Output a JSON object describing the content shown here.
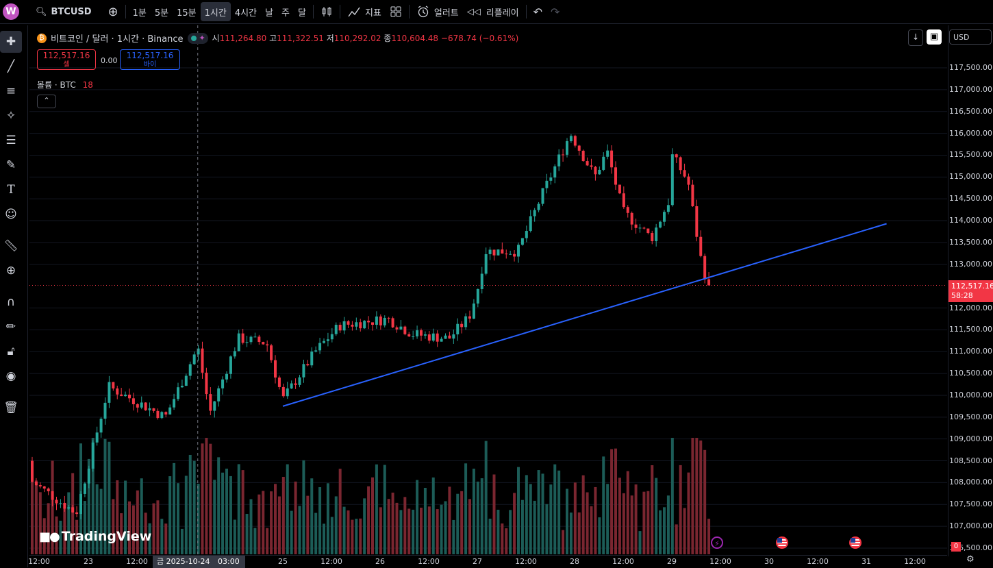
{
  "toolbar": {
    "logo": "W",
    "symbol": "BTCUSD",
    "intervals": [
      "1분",
      "5분",
      "15분",
      "1시간",
      "4시간",
      "날",
      "주",
      "달"
    ],
    "active_interval": "1시간",
    "indicators_label": "지표",
    "alert_label": "얼러트",
    "replay_label": "리플레이"
  },
  "legend": {
    "title": "비트코인 / 달러 · 1시간 · Binance",
    "open_label": "시",
    "open": "111,264.80",
    "high_label": "고",
    "high": "111,322.51",
    "low_label": "저",
    "low": "110,292.02",
    "close_label": "종",
    "close": "110,604.48",
    "change": "−678.74 (−0.61%)"
  },
  "trade": {
    "sell_price": "112,517.16",
    "sell_label": "셀",
    "spread": "0.00",
    "buy_price": "112,517.16",
    "buy_label": "바이"
  },
  "volume_legend": {
    "label": "볼륨 · BTC",
    "value": "18"
  },
  "currency": "USD",
  "last_price": {
    "price": "112,517.16",
    "countdown": "58:28"
  },
  "volume_axis_label": "0",
  "watermark": "TradingView",
  "crosshair_time": {
    "date": "금 2025-10-24",
    "time": "03:00"
  },
  "price_axis": [
    "117,500.00",
    "117,000.00",
    "116,500.00",
    "116,000.00",
    "115,500.00",
    "115,000.00",
    "114,500.00",
    "114,000.00",
    "113,500.00",
    "113,000.00",
    "112,000.00",
    "111,500.00",
    "111,000.00",
    "110,500.00",
    "110,000.00",
    "109,500.00",
    "109,000.00",
    "108,500.00",
    "108,000.00",
    "107,500.00",
    "107,000.00",
    "106,500.00"
  ],
  "time_axis": [
    "12:00",
    "23",
    "12:00",
    "25",
    "12:00",
    "26",
    "12:00",
    "27",
    "12:00",
    "28",
    "12:00",
    "29",
    "12:00",
    "30",
    "12:00",
    "31",
    "12:00"
  ],
  "colors": {
    "up": "#26a69a",
    "down": "#f23645",
    "trendline": "#2962ff",
    "background": "#000000"
  },
  "chart_data": {
    "type": "candlestick",
    "interval": "1h",
    "ohlc_anchor_points": [
      {
        "time": "22 ~03:00",
        "price": 108500
      },
      {
        "time": "22 ~21:00",
        "price": 107300
      },
      {
        "time": "23 ~05:00",
        "price": 110200
      },
      {
        "time": "23 ~19:00",
        "price": 109500
      },
      {
        "time": "24 ~03:00",
        "price": 111100
      },
      {
        "time": "24 ~06:00",
        "price": 109600
      },
      {
        "time": "24 ~13:00",
        "price": 111300
      },
      {
        "time": "24 ~20:00",
        "price": 111200
      },
      {
        "time": "25 ~00:00",
        "price": 109900
      },
      {
        "time": "25 ~08:00",
        "price": 111000
      },
      {
        "time": "25 ~14:00",
        "price": 111600
      },
      {
        "time": "26 ~02:00",
        "price": 111750
      },
      {
        "time": "26 ~08:00",
        "price": 111400
      },
      {
        "time": "26 ~17:00",
        "price": 111300
      },
      {
        "time": "26 ~22:00",
        "price": 111800
      },
      {
        "time": "27 ~00:00",
        "price": 112400
      },
      {
        "time": "27 ~02:00",
        "price": 113300
      },
      {
        "time": "27 ~10:00",
        "price": 113300
      },
      {
        "time": "27 ~16:00",
        "price": 114600
      },
      {
        "time": "27 ~23:00",
        "price": 116000
      },
      {
        "time": "28 ~05:00",
        "price": 115000
      },
      {
        "time": "28 ~08:00",
        "price": 115600
      },
      {
        "time": "28 ~12:00",
        "price": 114200
      },
      {
        "time": "28 ~19:00",
        "price": 113600
      },
      {
        "time": "28 ~24:00",
        "price": 114600
      },
      {
        "time": "29 ~00:00",
        "price": 115500
      },
      {
        "time": "29 ~04:00",
        "price": 114900
      },
      {
        "time": "29 ~07:00",
        "price": 113200
      },
      {
        "time": "29 ~08:00",
        "price": 112800
      },
      {
        "time": "29 ~10:00",
        "price": 112517.16
      }
    ],
    "trendline": {
      "start": {
        "time": "25 ~00:00",
        "price": 109750
      },
      "end": {
        "time": "31 ~05:00",
        "price": 113930
      }
    },
    "last_price": 112517.16
  }
}
